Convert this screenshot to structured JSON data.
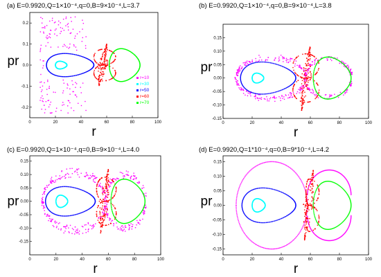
{
  "figure": {
    "colors": {
      "r10": "#ff00ff",
      "r30": "#00ffff",
      "r50": "#0000ff",
      "r60": "#ff0000",
      "r70": "#00ff00",
      "axes": "#000000"
    }
  },
  "chart_data": [
    {
      "panel": "a",
      "type": "scatter",
      "title": "(a) E=0.9920,Q=1×10⁻⁴,q=0,B=9×10⁻⁴,L=3.7",
      "xlabel": "r",
      "ylabel": "pr",
      "xlim": [
        0,
        100
      ],
      "ylim": [
        -0.25,
        0.25
      ],
      "xticks": [
        "0",
        "20",
        "40",
        "60",
        "80",
        "100"
      ],
      "yticks": [
        "-0.2",
        "-0.1",
        "0.0",
        "0.1",
        "0.2"
      ],
      "legend": {
        "placement": "right",
        "entries": [
          "r=10",
          "r=30",
          "r=50",
          "r=60",
          "r=70"
        ]
      },
      "series": [
        {
          "name": "r=10",
          "color": "#ff00ff",
          "shape": "chaotic",
          "r_range": [
            8,
            45
          ],
          "pr_max": 0.23
        },
        {
          "name": "r=30",
          "color": "#00ffff",
          "shape": "loop",
          "r_min": 20,
          "r_max": 29,
          "pr_max": 0.02
        },
        {
          "name": "r=50",
          "color": "#0000ff",
          "shape": "loop",
          "r_min": 13,
          "r_max": 50,
          "pr_max": 0.06
        },
        {
          "name": "r=60",
          "color": "#ff0000",
          "shape": "separatrix",
          "r_x": 57,
          "r_left": 50,
          "r_right": 67,
          "pr_max": 0.1
        },
        {
          "name": "r=70",
          "color": "#00ff00",
          "shape": "loop",
          "r_min": 62,
          "r_max": 86,
          "pr_max": 0.085
        }
      ]
    },
    {
      "panel": "b",
      "type": "scatter",
      "title": "(b) E=0.9920,Q=1×10⁻⁴,q=0,B=9×10⁻⁴,L=3.8",
      "xlabel": "r",
      "ylabel": "pr",
      "xlim": [
        0,
        100
      ],
      "ylim": [
        -0.15,
        0.2
      ],
      "xticks": [
        "0",
        "20",
        "40",
        "60",
        "80",
        "100"
      ],
      "yticks": [
        "-0.15",
        "-0.10",
        "-0.05",
        "0.00",
        "0.05",
        "0.10",
        "0.15"
      ],
      "series": [
        {
          "name": "r=10",
          "color": "#ff00ff",
          "shape": "band",
          "r_min": 9,
          "r_max": 88,
          "r_x": 57,
          "pr_max": 0.085,
          "pr_min_x": 0.012
        },
        {
          "name": "r=30",
          "color": "#00ffff",
          "shape": "loop",
          "r_min": 20,
          "r_max": 28,
          "pr_max": 0.02
        },
        {
          "name": "r=50",
          "color": "#0000ff",
          "shape": "loop",
          "r_min": 12,
          "r_max": 50,
          "pr_max": 0.065
        },
        {
          "name": "r=60",
          "color": "#ff0000",
          "shape": "separatrix",
          "r_x": 57,
          "r_left": 48,
          "r_right": 66,
          "pr_max": 0.12
        },
        {
          "name": "r=70",
          "color": "#00ff00",
          "shape": "loop",
          "r_min": 62,
          "r_max": 88,
          "pr_max": 0.085
        }
      ]
    },
    {
      "panel": "c",
      "type": "scatter",
      "title": "(c) E=0.9920,Q=1×10⁻⁴,q=0,B=9×10⁻⁴,L=4.0",
      "xlabel": "r",
      "ylabel": "pr",
      "xlim": [
        0,
        100
      ],
      "ylim": [
        -0.2,
        0.17
      ],
      "xticks": [
        "0",
        "20",
        "40",
        "60",
        "80",
        "100"
      ],
      "yticks": [
        "-0.15",
        "-0.10",
        "-0.05",
        "0.00",
        "0.05",
        "0.10",
        "0.15"
      ],
      "series": [
        {
          "name": "r=10",
          "color": "#ff00ff",
          "shape": "band",
          "r_min": 10,
          "r_max": 88,
          "r_x": 58,
          "pr_max": 0.12,
          "pr_min_x": 0.012
        },
        {
          "name": "r=30",
          "color": "#00ffff",
          "shape": "loop",
          "r_min": 20,
          "r_max": 29,
          "pr_max": 0.025
        },
        {
          "name": "r=50",
          "color": "#0000ff",
          "shape": "loop",
          "r_min": 12,
          "r_max": 50,
          "pr_max": 0.06
        },
        {
          "name": "r=60",
          "color": "#ff0000",
          "shape": "separatrix",
          "r_x": 57,
          "r_left": 51,
          "r_right": 66,
          "pr_max": 0.12
        },
        {
          "name": "r=70",
          "color": "#00ff00",
          "shape": "loop",
          "r_min": 62,
          "r_max": 88,
          "pr_max": 0.09
        }
      ]
    },
    {
      "panel": "d",
      "type": "scatter",
      "title": "(d) E=0.9920,Q=1*10⁻⁴,q=0,B=9*10⁻⁴,L=4.2",
      "xlabel": "r",
      "ylabel": "pr",
      "xlim": [
        0,
        100
      ],
      "ylim": [
        -0.17,
        0.17
      ],
      "xticks": [
        "0",
        "20",
        "40",
        "60",
        "80",
        "100"
      ],
      "yticks": [
        "-0.15",
        "-0.10",
        "-0.05",
        "0.00",
        "0.05",
        "0.10",
        "0.15"
      ],
      "series": [
        {
          "name": "r=10",
          "color": "#ff00ff",
          "shape": "outer",
          "r_min": 9,
          "r_max": 88,
          "r_x": 58,
          "pr_max": 0.15,
          "pr_min_x": 0.035
        },
        {
          "name": "r=30",
          "color": "#00ffff",
          "shape": "loop",
          "r_min": 20,
          "r_max": 29,
          "pr_max": 0.025
        },
        {
          "name": "r=50",
          "color": "#0000ff",
          "shape": "loop",
          "r_min": 13,
          "r_max": 50,
          "pr_max": 0.065
        },
        {
          "name": "r=60",
          "color": "#ff0000",
          "shape": "separatrix",
          "r_x": 59,
          "r_left": 57,
          "r_right": 66,
          "pr_max": 0.12
        },
        {
          "name": "r=70",
          "color": "#00ff00",
          "shape": "loop",
          "r_min": 62,
          "r_max": 88,
          "pr_max": 0.09
        }
      ]
    }
  ]
}
